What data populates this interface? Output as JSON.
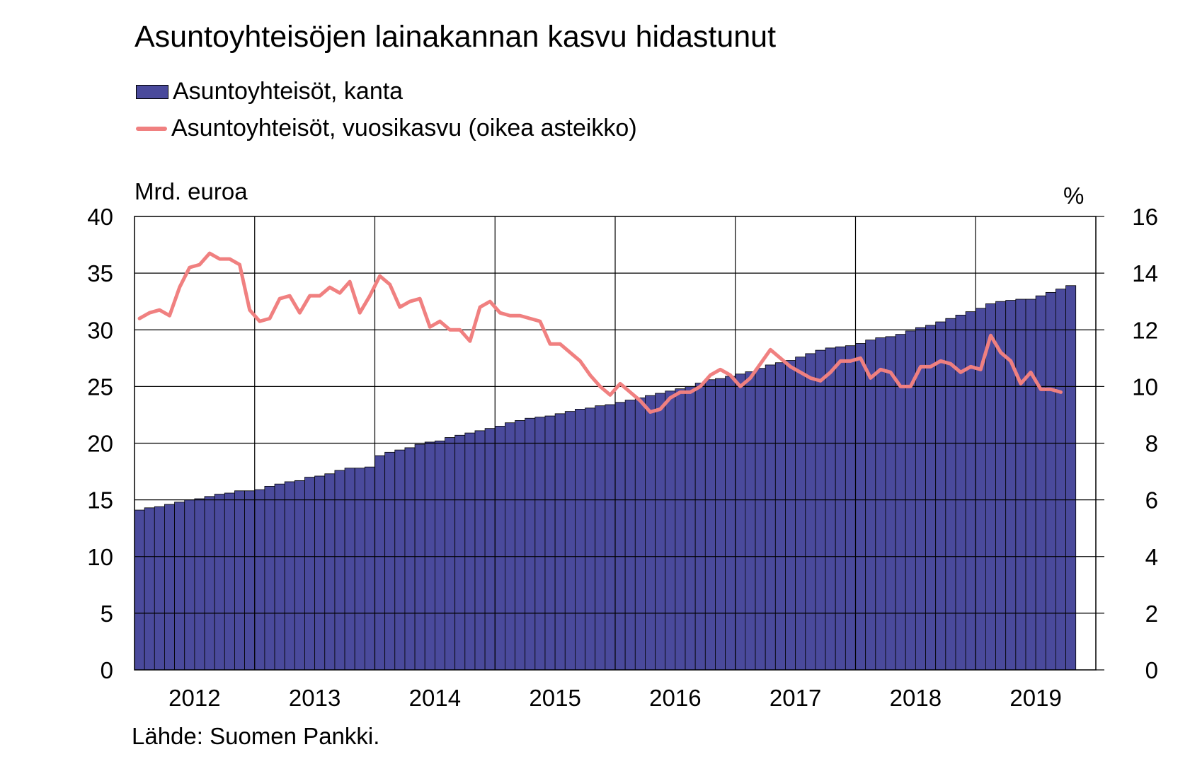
{
  "chart_data": {
    "type": "bar",
    "title": "Asuntoyhteisöjen lainakannan kasvu hidastunut",
    "left_axis_label": "Mrd. euroa",
    "right_axis_label": "%",
    "source": "Lähde: Suomen Pankki.",
    "x_tick_labels": [
      "2012",
      "2013",
      "2014",
      "2015",
      "2016",
      "2017",
      "2018",
      "2019"
    ],
    "ylim_left": [
      0,
      40
    ],
    "yticks_left": [
      "0",
      "5",
      "10",
      "15",
      "20",
      "25",
      "30",
      "35",
      "40"
    ],
    "ylim_right": [
      0,
      16
    ],
    "yticks_right": [
      "0",
      "2",
      "4",
      "6",
      "8",
      "10",
      "12",
      "14",
      "16"
    ],
    "grid": true,
    "legend_placement": "top-left",
    "start_month": "2012-01",
    "series": [
      {
        "name": "Asuntoyhteisöt, kanta",
        "type": "bar",
        "axis": "left",
        "color": "#4a4a9c",
        "values": [
          14.1,
          14.3,
          14.4,
          14.6,
          14.8,
          15.0,
          15.1,
          15.3,
          15.5,
          15.6,
          15.8,
          15.8,
          15.9,
          16.2,
          16.4,
          16.6,
          16.7,
          17.0,
          17.1,
          17.3,
          17.6,
          17.8,
          17.8,
          17.9,
          18.9,
          19.2,
          19.4,
          19.6,
          19.9,
          20.1,
          20.2,
          20.5,
          20.7,
          20.9,
          21.1,
          21.3,
          21.5,
          21.8,
          22.0,
          22.2,
          22.3,
          22.4,
          22.6,
          22.8,
          23.0,
          23.1,
          23.3,
          23.4,
          23.6,
          23.8,
          24.0,
          24.2,
          24.4,
          24.6,
          24.8,
          25.0,
          25.3,
          25.6,
          25.7,
          25.9,
          26.1,
          26.3,
          26.6,
          26.9,
          27.1,
          27.3,
          27.6,
          27.9,
          28.2,
          28.4,
          28.5,
          28.6,
          28.8,
          29.1,
          29.3,
          29.4,
          29.6,
          29.9,
          30.2,
          30.4,
          30.7,
          31.0,
          31.3,
          31.6,
          31.9,
          32.3,
          32.5,
          32.6,
          32.7,
          32.7,
          33.0,
          33.3,
          33.6,
          33.9
        ]
      },
      {
        "name": "Asuntoyhteisöt, vuosikasvu (oikea asteikko)",
        "type": "line",
        "axis": "right",
        "color": "#f08080",
        "values": [
          12.4,
          12.6,
          12.7,
          12.5,
          13.5,
          14.2,
          14.3,
          14.7,
          14.5,
          14.5,
          14.3,
          12.7,
          12.3,
          12.4,
          13.1,
          13.2,
          12.6,
          13.2,
          13.2,
          13.5,
          13.3,
          13.7,
          12.6,
          13.2,
          13.9,
          13.6,
          12.8,
          13.0,
          13.1,
          12.1,
          12.3,
          12.0,
          12.0,
          11.6,
          12.8,
          13.0,
          12.6,
          12.5,
          12.5,
          12.4,
          12.3,
          11.5,
          11.5,
          11.2,
          10.9,
          10.4,
          10.0,
          9.7,
          10.1,
          9.8,
          9.5,
          9.1,
          9.2,
          9.6,
          9.8,
          9.8,
          10.0,
          10.4,
          10.6,
          10.4,
          10.0,
          10.3,
          10.8,
          11.3,
          11.0,
          10.7,
          10.5,
          10.3,
          10.2,
          10.5,
          10.9,
          10.9,
          11.0,
          10.3,
          10.6,
          10.5,
          10.0,
          10.0,
          10.7,
          10.7,
          10.9,
          10.8,
          10.5,
          10.7,
          10.6,
          11.8,
          11.2,
          10.9,
          10.1,
          10.5,
          9.9,
          9.9,
          9.8
        ]
      }
    ]
  }
}
